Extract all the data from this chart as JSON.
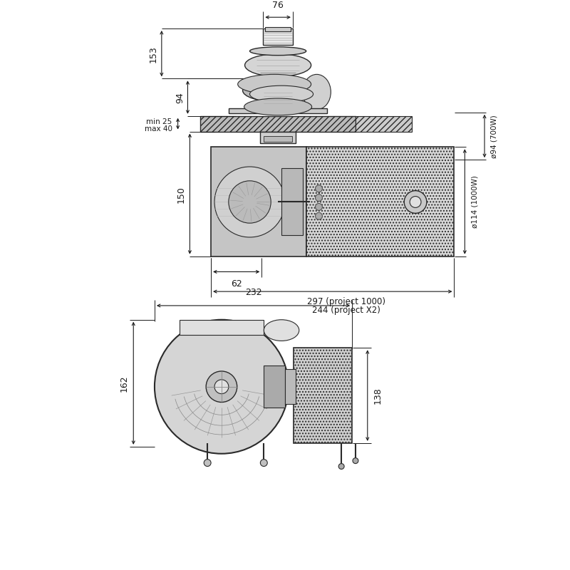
{
  "bg_color": "#ffffff",
  "lc": "#2a2a2a",
  "dc": "#1a1a1a",
  "gray_light": "#d8d8d8",
  "gray_med": "#b8b8b8",
  "gray_dark": "#888888",
  "gray_hatch": "#cccccc",
  "top": {
    "dim_76": "76",
    "dim_153": "153",
    "dim_94": "94",
    "dim_min25": "min 25",
    "dim_max40": "max 40",
    "dim_150": "150",
    "dim_62": "62",
    "dim_297": "297 (project 1000)",
    "dim_244": "244 (project X2)",
    "dim_o94": "ø94 (700W)",
    "dim_o114": "ø114 (1000W)"
  },
  "bot": {
    "dim_232": "232",
    "dim_162": "162",
    "dim_138": "138"
  }
}
